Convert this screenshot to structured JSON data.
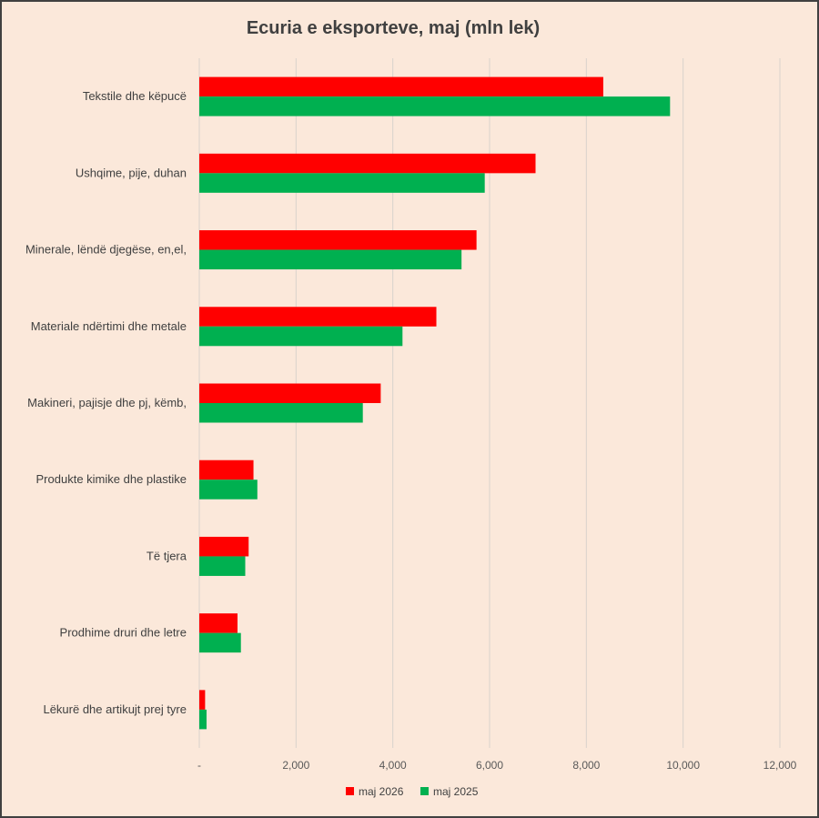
{
  "chart_data": {
    "type": "bar",
    "orientation": "horizontal",
    "title": "Ecuria e eksporteve, maj (mln lek)",
    "categories": [
      "Tekstile dhe këpucë",
      "Ushqime, pije, duhan",
      "Minerale, lëndë djegëse, en,el,",
      "Materiale ndërtimi dhe metale",
      "Makineri, pajisje dhe pj, këmb,",
      "Produkte kimike dhe plastike",
      "Të tjera",
      "Prodhime druri dhe letre",
      "Lëkurë dhe artikujt prej tyre"
    ],
    "series": [
      {
        "name": "maj 2026",
        "color": "#ff0000",
        "values": [
          8350,
          6950,
          5730,
          4900,
          3750,
          1120,
          1020,
          790,
          120
        ]
      },
      {
        "name": "maj 2025",
        "color": "#00b050",
        "values": [
          9730,
          5900,
          5420,
          4200,
          3380,
          1200,
          950,
          860,
          150
        ]
      }
    ],
    "xlim": [
      0,
      12000
    ],
    "xticks": [
      "-",
      "2,000",
      "4,000",
      "6,000",
      "8,000",
      "10,000",
      "12,000"
    ],
    "grid": true,
    "legend_position": "bottom"
  }
}
